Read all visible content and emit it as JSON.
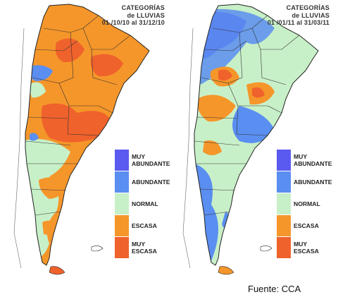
{
  "panels": [
    {
      "title_line1": "CATEGORÍAS",
      "title_line2": "de LLUVIAS",
      "period": "01 /10/10 al 31/12/10"
    },
    {
      "title_line1": "CATEGORÍAS",
      "title_line2": "de LLUVIAS",
      "period": "01 /01/11 al 31/03/11"
    }
  ],
  "legend": [
    {
      "label": "MUY\nABUNDANTE",
      "color": "#5a5af0"
    },
    {
      "label": "ABUNDANTE",
      "color": "#5a8ef0"
    },
    {
      "label": "NORMAL",
      "color": "#c8f0c8"
    },
    {
      "label": "ESCASA",
      "color": "#f5962a"
    },
    {
      "label": "MUY\nESCASA",
      "color": "#f0622c"
    }
  ],
  "source": "Fuente: CCA",
  "colors": {
    "muy_abundante": "#5a5af0",
    "abundante": "#5a8ef0",
    "normal": "#c8f0c8",
    "escasa": "#f5962a",
    "muy_escasa": "#f0622c"
  }
}
